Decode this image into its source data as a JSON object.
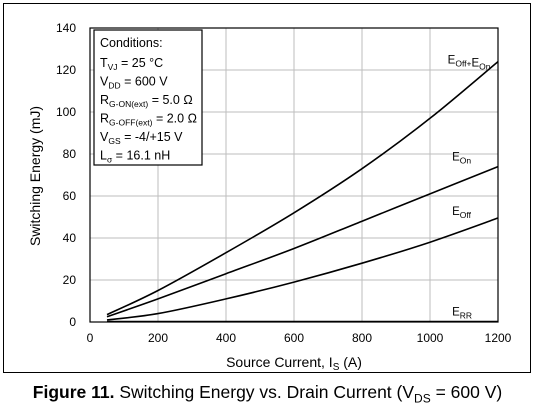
{
  "caption": {
    "fig_label": "Figure 11.",
    "text": "Switching Energy vs. Drain Current (V",
    "sub": "DS",
    "suffix": " = 600 V)"
  },
  "conditions": {
    "title": "Conditions:",
    "lines": [
      {
        "pre": "T",
        "sub": "VJ",
        "post": " = 25 °C"
      },
      {
        "pre": "V",
        "sub": "DD",
        "post": " = 600 V"
      },
      {
        "pre": "R",
        "sub": "G-ON(ext)",
        "post": " = 5.0 Ω"
      },
      {
        "pre": "R",
        "sub": "G-OFF(ext)",
        "post": " = 2.0 Ω"
      },
      {
        "pre": "V",
        "sub": "GS",
        "post": " = -4/+15 V"
      },
      {
        "pre": "L",
        "sub": "σ",
        "post": " = 16.1 nH"
      }
    ]
  },
  "chart_data": {
    "type": "line",
    "xlabel": {
      "pre": "Source Current, I",
      "sub": "S",
      "post": " (A)"
    },
    "ylabel": "Switching Energy (mJ)",
    "xlim": [
      0,
      1200
    ],
    "ylim": [
      0,
      140
    ],
    "xticks": [
      0,
      200,
      400,
      600,
      800,
      1000,
      1200
    ],
    "yticks": [
      0,
      20,
      40,
      60,
      80,
      100,
      120,
      140
    ],
    "grid": true,
    "series": [
      {
        "name": "Eoff+Eon",
        "label_parts": [
          [
            "E",
            "Off+"
          ],
          [
            "E",
            "On"
          ]
        ],
        "label_at": [
          1052,
          123
        ],
        "x": [
          50,
          200,
          400,
          600,
          800,
          1000,
          1200
        ],
        "y": [
          3.5,
          15,
          33,
          52,
          73,
          97,
          124
        ]
      },
      {
        "name": "Eon",
        "label_parts": [
          [
            "E",
            "On"
          ]
        ],
        "label_at": [
          1065,
          77
        ],
        "x": [
          50,
          200,
          400,
          600,
          800,
          1000,
          1200
        ],
        "y": [
          2.5,
          11,
          23,
          35,
          48,
          61,
          74
        ]
      },
      {
        "name": "Eoff",
        "label_parts": [
          [
            "E",
            "Off"
          ]
        ],
        "label_at": [
          1065,
          51
        ],
        "x": [
          50,
          200,
          400,
          600,
          800,
          1000,
          1200
        ],
        "y": [
          1,
          4,
          11,
          19,
          28,
          38,
          49.5
        ]
      },
      {
        "name": "ERR",
        "label_parts": [
          [
            "E",
            "RR"
          ]
        ],
        "label_at": [
          1065,
          3
        ],
        "x": [
          50,
          200,
          400,
          600,
          800,
          1000,
          1200
        ],
        "y": [
          0.2,
          0.2,
          0.2,
          0.2,
          0.2,
          0.2,
          0.2
        ]
      }
    ]
  }
}
